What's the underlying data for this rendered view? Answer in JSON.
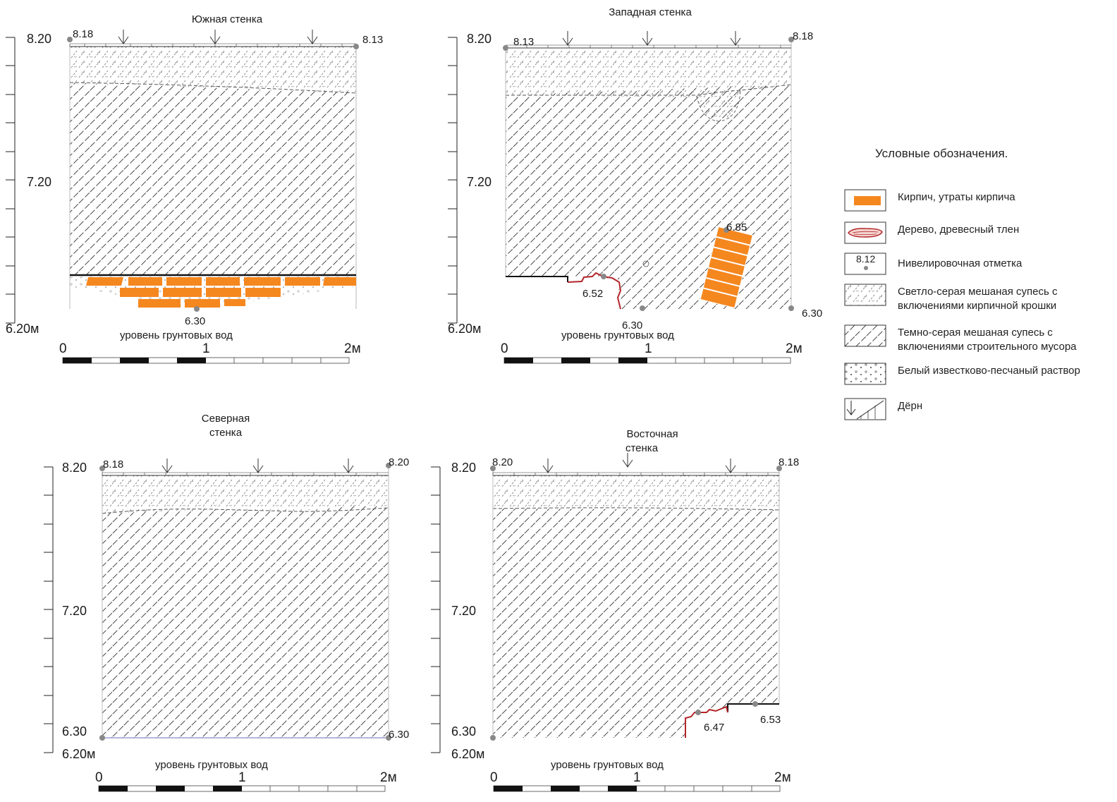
{
  "panels": {
    "south": {
      "title_lines": [
        "Южная стенка"
      ],
      "y_labels": {
        "top": "8.20",
        "mid": "7.20",
        "bottom": "6.20м"
      },
      "elev": {
        "tl": "8.18",
        "tr": "8.13",
        "bottom": "6.30"
      },
      "groundwater": "уровень грунтовых вод",
      "scale": {
        "s0": "0",
        "s1": "1",
        "s2": "2м"
      }
    },
    "west": {
      "title_lines": [
        "Западная стенка"
      ],
      "y_labels": {
        "top": "8.20",
        "mid": "7.20",
        "bottom": "6.20м"
      },
      "elev": {
        "tl": "8.13",
        "tr": "8.18",
        "m652": "6.52",
        "m685": "6.85",
        "bottom": "6.30",
        "br": "6.30"
      },
      "groundwater": "уровень грунтовых вод",
      "scale": {
        "s0": "0",
        "s1": "1",
        "s2": "2м"
      }
    },
    "north": {
      "title_lines": [
        "Северная",
        "стенка"
      ],
      "y_labels": {
        "top": "8.20",
        "mid": "7.20",
        "bottom": "6.20м",
        "b2": "6.30"
      },
      "elev": {
        "tl": "8.18",
        "tr": "8.20",
        "br": "6.30"
      },
      "groundwater": "уровень грунтовых вод",
      "scale": {
        "s0": "0",
        "s1": "1",
        "s2": "2м"
      }
    },
    "east": {
      "title_lines": [
        "Восточная",
        "стенка"
      ],
      "y_labels": {
        "top": "8.20",
        "mid": "7.20",
        "bottom": "6.20м",
        "b2": "6.30"
      },
      "elev": {
        "tl": "8.20",
        "tr": "8.18",
        "m647": "6.47",
        "m653": "6.53"
      },
      "groundwater": "уровень грунтовых вод",
      "scale": {
        "s0": "0",
        "s1": "1",
        "s2": "2м"
      }
    }
  },
  "legend": {
    "title": "Условные обозначения.",
    "brick": "Кирпич, утраты кирпича",
    "wood": "Дерево, древесный тлен",
    "level_sample": "8.12",
    "level": "Нивелировочная отметка",
    "light_sand": "Светло-серая мешаная супесь с включениями кирпичной крошки",
    "dark_sand": "Темно-серая мешаная супесь с включениями строительного мусора",
    "mortar": "Белый известково-песчаный раствор",
    "turf": "Дёрн"
  },
  "colors": {
    "brick": "#f5871f",
    "wood": "#b3262a",
    "line": "#222222",
    "water_line": "#8888cc",
    "point": "#888888"
  }
}
